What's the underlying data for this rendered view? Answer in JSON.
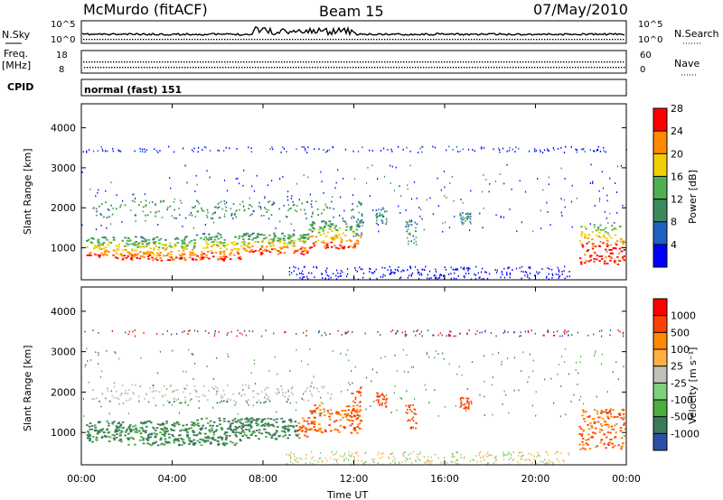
{
  "header": {
    "station": "McMurdo (fitACF)",
    "beam": "Beam 15",
    "date": "07/May/2010"
  },
  "noise_panel": {
    "left_label": "N.Sky",
    "left_ticks": [
      "10^5",
      "10^0"
    ],
    "right_label": "N.Search",
    "right_ticks": [
      "10^5",
      "10^0"
    ]
  },
  "freq_panel": {
    "left_label_line1": "Freq.",
    "left_label_line2": "[MHz]",
    "left_ticks": [
      "18",
      "8"
    ],
    "right_label": "Nave",
    "right_ticks": [
      "60",
      "0"
    ]
  },
  "cpid": {
    "label": "CPID",
    "value": "normal (fast) 151"
  },
  "chart_data": [
    {
      "type": "heatmap",
      "name": "power",
      "ylabel": "Slant Range [km]",
      "ylim": [
        200,
        4600
      ],
      "y_ticks": [
        "1000",
        "2000",
        "3000",
        "4000"
      ],
      "x_ticks": [
        "00:00",
        "04:00",
        "08:00",
        "12:00",
        "16:00",
        "20:00",
        "00:00"
      ],
      "colorbar": {
        "label": "Power [dB]",
        "ticks": [
          "4",
          "8",
          "12",
          "16",
          "20",
          "24",
          "28"
        ],
        "colors": [
          "#0000ff",
          "#2060c0",
          "#3a8a5a",
          "#50b050",
          "#f0d000",
          "#ff8a00",
          "#ff0000"
        ]
      }
    },
    {
      "type": "heatmap",
      "name": "velocity",
      "ylabel": "Slant Range [km]",
      "ylim": [
        200,
        4600
      ],
      "y_ticks": [
        "1000",
        "2000",
        "3000",
        "4000"
      ],
      "x_ticks": [
        "00:00",
        "04:00",
        "08:00",
        "12:00",
        "16:00",
        "20:00",
        "00:00"
      ],
      "xlabel": "Time UT",
      "colorbar": {
        "label": "Velocity [m s⁻¹]",
        "ticks": [
          "1000",
          "500",
          "100",
          "25",
          "-25",
          "-100",
          "-500",
          "-1000"
        ],
        "colors": [
          "#2b4fa8",
          "#3a7a5a",
          "#4cae3c",
          "#7fd07a",
          "#c0c0b8",
          "#ffb040",
          "#ff8a00",
          "#ff4000",
          "#ff0000"
        ]
      }
    }
  ]
}
